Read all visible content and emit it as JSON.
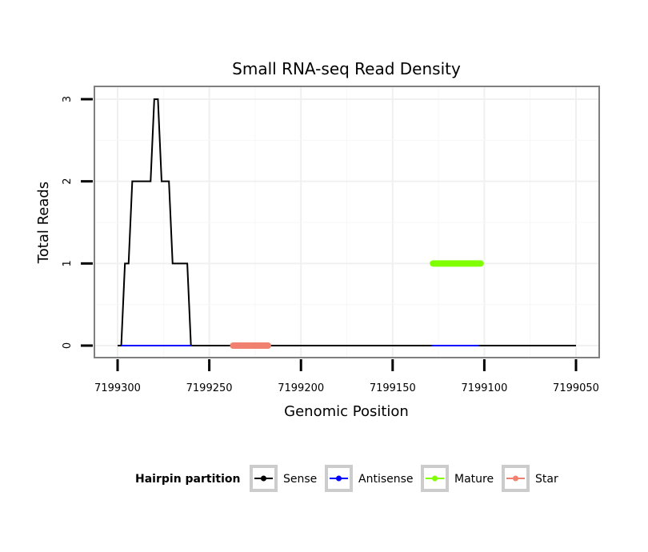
{
  "chart_data": {
    "type": "line",
    "title": "Small RNA-seq Read Density",
    "xlabel": "Genomic Position",
    "ylabel": "Total Reads",
    "x_reversed": true,
    "xlim": [
      7199300,
      7199050
    ],
    "ylim": [
      0,
      3
    ],
    "x_ticks": [
      7199300,
      7199250,
      7199200,
      7199150,
      7199100,
      7199050
    ],
    "x_tick_labels": [
      "7199300",
      "7199250",
      "7199200",
      "7199150",
      "7199100",
      "7199050"
    ],
    "y_ticks": [
      0,
      1,
      2,
      3
    ],
    "y_tick_labels": [
      "0",
      "1",
      "2",
      "3"
    ],
    "grid": true,
    "legend": {
      "title": "Hairpin partition",
      "position": "bottom",
      "entries": [
        "Sense",
        "Antisense",
        "Mature",
        "Star"
      ]
    },
    "series": [
      {
        "name": "Sense",
        "color": "#000000",
        "points": [
          [
            7199300,
            0
          ],
          [
            7199298,
            0
          ],
          [
            7199296,
            1
          ],
          [
            7199294,
            1
          ],
          [
            7199292,
            2
          ],
          [
            7199282,
            2
          ],
          [
            7199280,
            3
          ],
          [
            7199278,
            3
          ],
          [
            7199276,
            2
          ],
          [
            7199272,
            2
          ],
          [
            7199270,
            1
          ],
          [
            7199262,
            1
          ],
          [
            7199260,
            0
          ],
          [
            7199050,
            0
          ]
        ]
      },
      {
        "name": "Antisense",
        "color": "#0000ff",
        "points": [
          [
            7199298,
            0
          ],
          [
            7199260,
            0
          ],
          [
            7199129,
            0
          ],
          [
            7199103,
            0
          ]
        ]
      },
      {
        "name": "Mature",
        "color": "#7fff00",
        "points": [
          [
            7199128,
            1
          ],
          [
            7199102,
            1
          ]
        ]
      },
      {
        "name": "Star",
        "color": "#f08070",
        "points": [
          [
            7199237,
            0
          ],
          [
            7199218,
            0
          ]
        ]
      }
    ]
  }
}
